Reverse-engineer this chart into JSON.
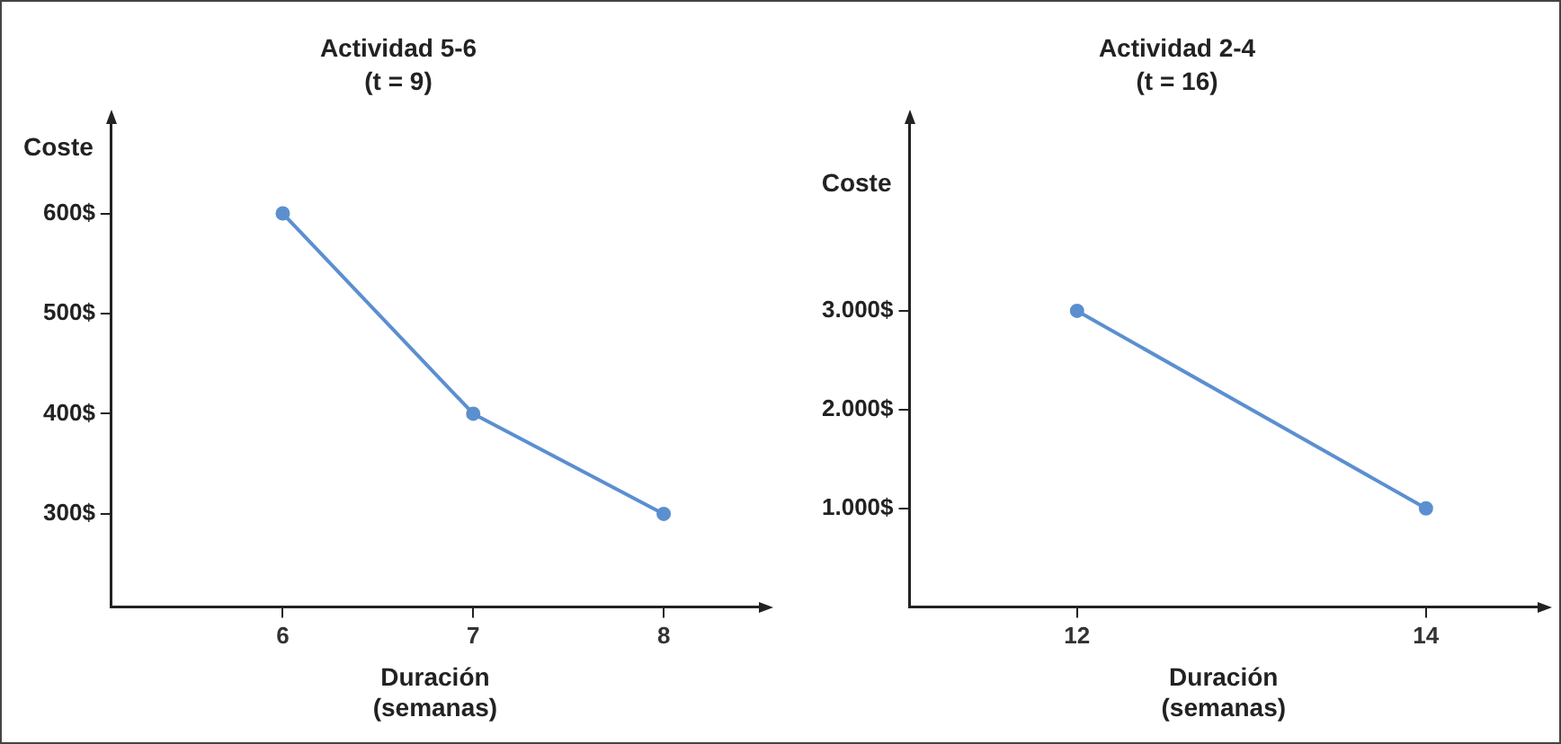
{
  "chart_data": [
    {
      "type": "line",
      "title": "Actividad 5-6",
      "subtitle": "(t = 9)",
      "xlabel": "Duración (semanas)",
      "ylabel": "Coste",
      "x": [
        6,
        7,
        8
      ],
      "series": [
        {
          "color": "#5b8fd0",
          "values": [
            600,
            400,
            300
          ]
        }
      ],
      "xlim": [
        5.1,
        8.5
      ],
      "xticks": [
        6,
        7,
        8
      ],
      "ylim": [
        207,
        690
      ],
      "yticks": [
        {
          "value": 300,
          "label": "300$"
        },
        {
          "value": 400,
          "label": "400$"
        },
        {
          "value": 500,
          "label": "500$"
        },
        {
          "value": 600,
          "label": "600$"
        }
      ],
      "grid": false,
      "legend": false,
      "marker": "circle",
      "line_style": "solid"
    },
    {
      "type": "line",
      "title": "Actividad 2-4",
      "subtitle": "(t = 16)",
      "xlabel": "Duración (semanas)",
      "ylabel": "Coste",
      "x": [
        12,
        14
      ],
      "series": [
        {
          "color": "#5b8fd0",
          "values": [
            3000,
            1000
          ]
        }
      ],
      "xlim": [
        11.04,
        14.64
      ],
      "xticks": [
        12,
        14
      ],
      "ylim": [
        0,
        4900
      ],
      "yticks": [
        {
          "value": 1000,
          "label": "1.000$"
        },
        {
          "value": 2000,
          "label": "2.000$"
        },
        {
          "value": 3000,
          "label": "3.000$"
        }
      ],
      "grid": false,
      "legend": false,
      "marker": "circle",
      "line_style": "solid"
    }
  ]
}
